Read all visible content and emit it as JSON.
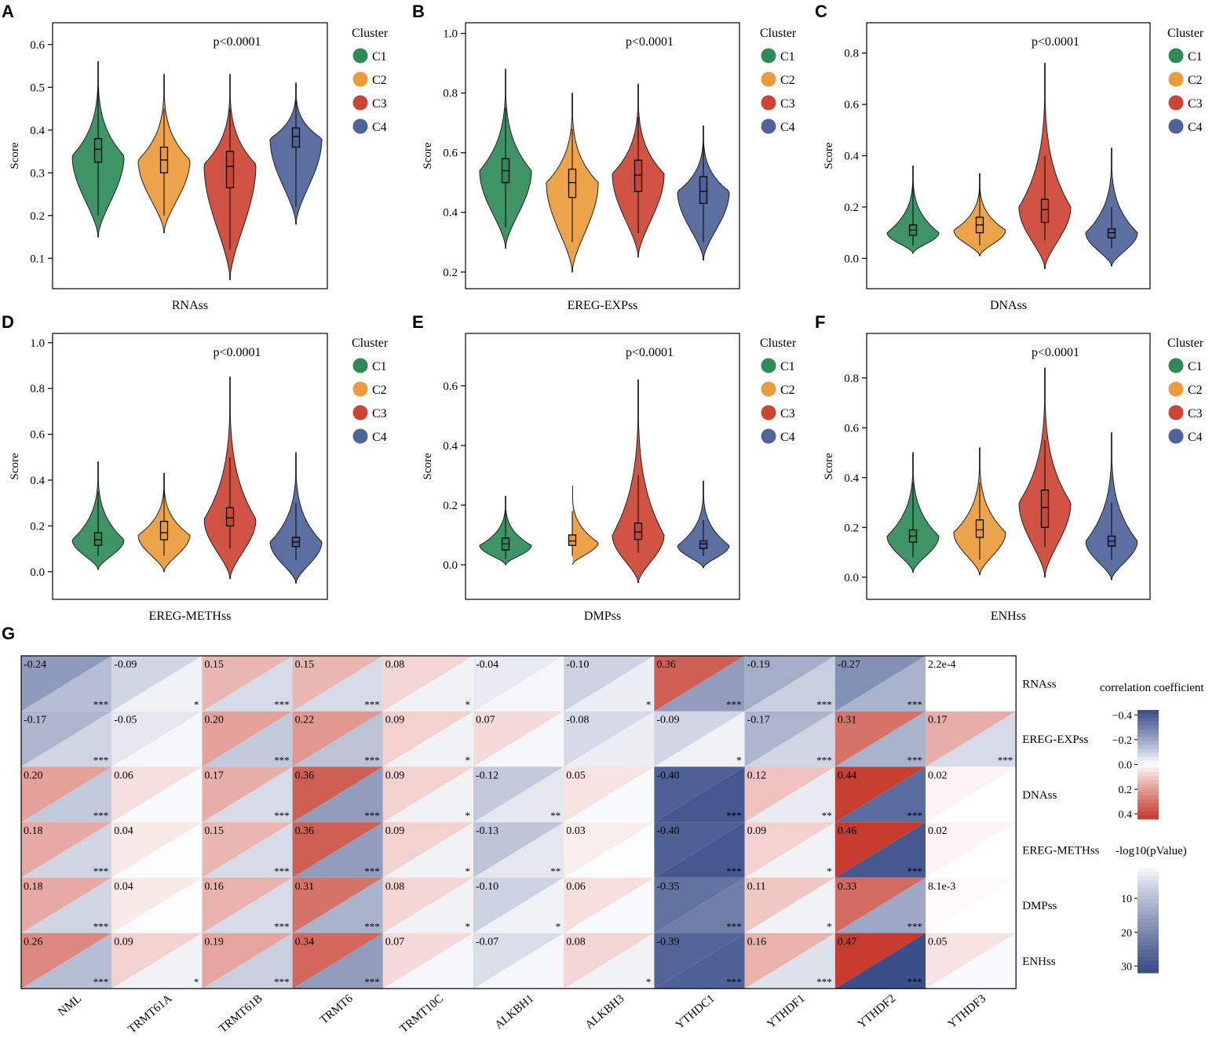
{
  "chart_data": {
    "type": "figure",
    "panels": [
      {
        "letter": "A",
        "type": "violin",
        "xlabel": "RNAss",
        "ylabel": "Score",
        "pvalue": "p<0.0001",
        "ylim": [
          0.04,
          0.64
        ],
        "yticks": [
          0.1,
          0.2,
          0.3,
          0.4,
          0.5,
          0.6
        ],
        "ytick_labels": [
          "0.1",
          "0.2",
          "0.3",
          "0.4",
          "0.5",
          "0.6"
        ],
        "legend": {
          "title": "Cluster",
          "entries": [
            "C1",
            "C2",
            "C3",
            "C4"
          ]
        },
        "violins": [
          {
            "cluster": "C1",
            "min": 0.15,
            "max": 0.56,
            "median": 0.355,
            "q1": 0.325,
            "q3": 0.38,
            "wlo": 0.2,
            "whi": 0.5,
            "peak": 0.34,
            "bulge": 0.36
          },
          {
            "cluster": "C2",
            "min": 0.16,
            "max": 0.53,
            "median": 0.33,
            "q1": 0.3,
            "q3": 0.36,
            "wlo": 0.2,
            "whi": 0.45,
            "peak": 0.33,
            "bulge": 0.34
          },
          {
            "cluster": "C3",
            "min": 0.05,
            "max": 0.53,
            "median": 0.315,
            "q1": 0.265,
            "q3": 0.35,
            "wlo": 0.12,
            "whi": 0.45,
            "peak": 0.32,
            "bulge": 0.38
          },
          {
            "cluster": "C4",
            "min": 0.18,
            "max": 0.51,
            "median": 0.385,
            "q1": 0.36,
            "q3": 0.405,
            "wlo": 0.22,
            "whi": 0.47,
            "peak": 0.38,
            "bulge": 0.32
          }
        ]
      },
      {
        "letter": "B",
        "type": "violin",
        "xlabel": "EREG-EXPss",
        "ylabel": "Score",
        "pvalue": "p<0.0001",
        "ylim": [
          0.16,
          1.02
        ],
        "yticks": [
          0.2,
          0.4,
          0.6,
          0.8,
          1.0
        ],
        "ytick_labels": [
          "0.2",
          "0.4",
          "0.6",
          "0.8",
          "1.0"
        ],
        "legend": {
          "title": "Cluster",
          "entries": [
            "C1",
            "C2",
            "C3",
            "C4"
          ]
        },
        "violins": [
          {
            "cluster": "C1",
            "min": 0.28,
            "max": 0.88,
            "median": 0.54,
            "q1": 0.5,
            "q3": 0.58,
            "wlo": 0.35,
            "whi": 0.75,
            "peak": 0.54,
            "bulge": 0.36
          },
          {
            "cluster": "C2",
            "min": 0.2,
            "max": 0.8,
            "median": 0.5,
            "q1": 0.45,
            "q3": 0.545,
            "wlo": 0.3,
            "whi": 0.68,
            "peak": 0.5,
            "bulge": 0.36
          },
          {
            "cluster": "C3",
            "min": 0.25,
            "max": 0.83,
            "median": 0.525,
            "q1": 0.47,
            "q3": 0.575,
            "wlo": 0.33,
            "whi": 0.72,
            "peak": 0.53,
            "bulge": 0.36
          },
          {
            "cluster": "C4",
            "min": 0.24,
            "max": 0.69,
            "median": 0.47,
            "q1": 0.43,
            "q3": 0.52,
            "wlo": 0.3,
            "whi": 0.63,
            "peak": 0.47,
            "bulge": 0.34
          }
        ]
      },
      {
        "letter": "C",
        "type": "violin",
        "xlabel": "DNAss",
        "ylabel": "Score",
        "pvalue": "p<0.0001",
        "ylim": [
          -0.1,
          0.9
        ],
        "yticks": [
          0.0,
          0.2,
          0.4,
          0.6,
          0.8
        ],
        "ytick_labels": [
          "0.0",
          "0.2",
          "0.4",
          "0.6",
          "0.8"
        ],
        "legend": {
          "title": "Cluster",
          "entries": [
            "C1",
            "C2",
            "C3",
            "C4"
          ]
        },
        "violins": [
          {
            "cluster": "C1",
            "min": 0.02,
            "max": 0.36,
            "median": 0.11,
            "q1": 0.09,
            "q3": 0.13,
            "wlo": 0.05,
            "whi": 0.3,
            "peak": 0.1,
            "bulge": 0.34
          },
          {
            "cluster": "C2",
            "min": 0.01,
            "max": 0.33,
            "median": 0.13,
            "q1": 0.1,
            "q3": 0.16,
            "wlo": 0.05,
            "whi": 0.28,
            "peak": 0.11,
            "bulge": 0.36
          },
          {
            "cluster": "C3",
            "min": -0.04,
            "max": 0.76,
            "median": 0.19,
            "q1": 0.14,
            "q3": 0.23,
            "wlo": 0.07,
            "whi": 0.4,
            "peak": 0.2,
            "bulge": 0.36
          },
          {
            "cluster": "C4",
            "min": -0.03,
            "max": 0.43,
            "median": 0.1,
            "q1": 0.08,
            "q3": 0.115,
            "wlo": 0.04,
            "whi": 0.2,
            "peak": 0.1,
            "bulge": 0.34
          }
        ]
      },
      {
        "letter": "D",
        "type": "violin",
        "xlabel": "EREG-METHss",
        "ylabel": "Score",
        "pvalue": "p<0.0001",
        "ylim": [
          -0.1,
          1.02
        ],
        "yticks": [
          0.0,
          0.2,
          0.4,
          0.6,
          0.8,
          1.0
        ],
        "ytick_labels": [
          "0.0",
          "0.2",
          "0.4",
          "0.6",
          "0.8",
          "1.0"
        ],
        "legend": {
          "title": "Cluster",
          "entries": [
            "C1",
            "C2",
            "C3",
            "C4"
          ]
        },
        "violins": [
          {
            "cluster": "C1",
            "min": 0.01,
            "max": 0.48,
            "median": 0.14,
            "q1": 0.115,
            "q3": 0.17,
            "wlo": 0.07,
            "whi": 0.35,
            "peak": 0.14,
            "bulge": 0.34
          },
          {
            "cluster": "C2",
            "min": 0.0,
            "max": 0.43,
            "median": 0.17,
            "q1": 0.14,
            "q3": 0.22,
            "wlo": 0.07,
            "whi": 0.35,
            "peak": 0.16,
            "bulge": 0.36
          },
          {
            "cluster": "C3",
            "min": -0.03,
            "max": 0.85,
            "median": 0.235,
            "q1": 0.2,
            "q3": 0.28,
            "wlo": 0.1,
            "whi": 0.5,
            "peak": 0.23,
            "bulge": 0.36
          },
          {
            "cluster": "C4",
            "min": -0.05,
            "max": 0.52,
            "median": 0.13,
            "q1": 0.11,
            "q3": 0.15,
            "wlo": 0.05,
            "whi": 0.3,
            "peak": 0.13,
            "bulge": 0.36
          }
        ]
      },
      {
        "letter": "E",
        "type": "violin",
        "xlabel": "DMPss",
        "ylabel": "Score",
        "pvalue": "p<0.0001",
        "ylim": [
          -0.1,
          0.76
        ],
        "yticks": [
          0.0,
          0.2,
          0.4,
          0.6
        ],
        "ytick_labels": [
          "0.0",
          "0.2",
          "0.4",
          "0.6"
        ],
        "legend": {
          "title": "Cluster",
          "entries": [
            "C1",
            "C2",
            "C3",
            "C4"
          ]
        },
        "violins": [
          {
            "cluster": "C1",
            "min": 0.0,
            "max": 0.23,
            "median": 0.07,
            "q1": 0.05,
            "q3": 0.09,
            "wlo": 0.02,
            "whi": 0.18,
            "peak": 0.065,
            "bulge": 0.34
          },
          {
            "cluster": "C2",
            "min": 0.0,
            "max": 0.27,
            "median": 0.08,
            "q1": 0.065,
            "q3": 0.1,
            "wlo": 0.03,
            "whi": 0.18,
            "peak": 0.075,
            "bulge": 0.36
          },
          {
            "cluster": "C3",
            "min": -0.06,
            "max": 0.62,
            "median": 0.11,
            "q1": 0.085,
            "q3": 0.14,
            "wlo": 0.04,
            "whi": 0.3,
            "peak": 0.1,
            "bulge": 0.36
          },
          {
            "cluster": "C4",
            "min": -0.01,
            "max": 0.28,
            "median": 0.07,
            "q1": 0.055,
            "q3": 0.08,
            "wlo": 0.03,
            "whi": 0.15,
            "peak": 0.065,
            "bulge": 0.34
          }
        ]
      },
      {
        "letter": "F",
        "type": "violin",
        "xlabel": "ENHss",
        "ylabel": "Score",
        "pvalue": "p<0.0001",
        "ylim": [
          -0.07,
          0.96
        ],
        "yticks": [
          0.0,
          0.2,
          0.4,
          0.6,
          0.8
        ],
        "ytick_labels": [
          "0.0",
          "0.2",
          "0.4",
          "0.6",
          "0.8"
        ],
        "legend": {
          "title": "Cluster",
          "entries": [
            "C1",
            "C2",
            "C3",
            "C4"
          ]
        },
        "violins": [
          {
            "cluster": "C1",
            "min": 0.02,
            "max": 0.5,
            "median": 0.165,
            "q1": 0.14,
            "q3": 0.19,
            "wlo": 0.08,
            "whi": 0.38,
            "peak": 0.165,
            "bulge": 0.34
          },
          {
            "cluster": "C2",
            "min": 0.01,
            "max": 0.52,
            "median": 0.19,
            "q1": 0.16,
            "q3": 0.23,
            "wlo": 0.07,
            "whi": 0.38,
            "peak": 0.18,
            "bulge": 0.36
          },
          {
            "cluster": "C3",
            "min": 0.0,
            "max": 0.84,
            "median": 0.28,
            "q1": 0.2,
            "q3": 0.35,
            "wlo": 0.12,
            "whi": 0.55,
            "peak": 0.3,
            "bulge": 0.38
          },
          {
            "cluster": "C4",
            "min": -0.01,
            "max": 0.58,
            "median": 0.145,
            "q1": 0.125,
            "q3": 0.165,
            "wlo": 0.07,
            "whi": 0.3,
            "peak": 0.145,
            "bulge": 0.36
          }
        ]
      }
    ],
    "clusters": [
      {
        "name": "C1",
        "color": "#2e8b57"
      },
      {
        "name": "C2",
        "color": "#eb9b3b"
      },
      {
        "name": "C3",
        "color": "#cc4434"
      },
      {
        "name": "C4",
        "color": "#4d6399"
      }
    ],
    "heatmap": {
      "letter": "G",
      "type": "heatmap",
      "rows": [
        "RNAss",
        "EREG-EXPss",
        "DNAss",
        "EREG-METHss",
        "DMPss",
        "ENHss"
      ],
      "columns": [
        "NML",
        "TRMT61A",
        "TRMT61B",
        "TRMT6",
        "TRMT10C",
        "ALKBH1",
        "ALKBH3",
        "YTHDC1",
        "YTHDF1",
        "YTHDF2",
        "YTHDF3"
      ],
      "labels": [
        [
          "-0.24",
          "-0.09",
          "0.15",
          "0.15",
          "0.08",
          "-0.04",
          "-0.10",
          "0.36",
          "-0.19",
          "-0.27",
          "2.2e-4"
        ],
        [
          "-0.17",
          "-0.05",
          "0.20",
          "0.22",
          "0.09",
          "0.07",
          "-0.08",
          "-0.09",
          "-0.17",
          "0.31",
          "0.17"
        ],
        [
          "0.20",
          "0.06",
          "0.17",
          "0.36",
          "0.09",
          "-0.12",
          "0.05",
          "-0.40",
          "0.12",
          "0.44",
          "0.02"
        ],
        [
          "0.18",
          "0.04",
          "0.15",
          "0.36",
          "0.09",
          "-0.13",
          "0.03",
          "-0.40",
          "0.09",
          "0.46",
          "0.02"
        ],
        [
          "0.18",
          "0.04",
          "0.16",
          "0.31",
          "0.08",
          "-0.10",
          "0.06",
          "-0.35",
          "0.11",
          "0.33",
          "8.1e-3"
        ],
        [
          "0.26",
          "0.09",
          "0.19",
          "0.34",
          "0.07",
          "-0.07",
          "0.08",
          "-0.39",
          "0.16",
          "0.47",
          "0.05"
        ]
      ],
      "correlation": [
        [
          -0.24,
          -0.09,
          0.15,
          0.15,
          0.08,
          -0.04,
          -0.1,
          0.36,
          -0.19,
          -0.27,
          0.00022
        ],
        [
          -0.17,
          -0.05,
          0.2,
          0.22,
          0.09,
          0.07,
          -0.08,
          -0.09,
          -0.17,
          0.31,
          0.17
        ],
        [
          0.2,
          0.06,
          0.17,
          0.36,
          0.09,
          -0.12,
          0.05,
          -0.4,
          0.12,
          0.44,
          0.02
        ],
        [
          0.18,
          0.04,
          0.15,
          0.36,
          0.09,
          -0.13,
          0.03,
          -0.4,
          0.09,
          0.46,
          0.02
        ],
        [
          0.18,
          0.04,
          0.16,
          0.31,
          0.08,
          -0.1,
          0.06,
          -0.35,
          0.11,
          0.33,
          0.0081
        ],
        [
          0.26,
          0.09,
          0.19,
          0.34,
          0.07,
          -0.07,
          0.08,
          -0.39,
          0.16,
          0.47,
          0.05
        ]
      ],
      "neglog10p": [
        [
          10,
          1.5,
          5,
          5,
          1.5,
          1,
          2,
          16,
          7,
          12,
          0
        ],
        [
          6,
          1,
          8,
          9,
          1.5,
          1,
          2,
          1.5,
          6,
          12,
          5
        ],
        [
          8,
          0.5,
          5,
          16,
          1.5,
          3,
          0.5,
          30,
          2.5,
          26,
          0
        ],
        [
          6,
          0.3,
          5,
          16,
          1.5,
          3,
          0.3,
          30,
          1.5,
          30,
          0
        ],
        [
          6,
          0.3,
          5,
          12,
          1.5,
          1.5,
          0.5,
          22,
          1.5,
          14,
          0
        ],
        [
          10,
          1.5,
          7,
          16,
          1,
          1,
          1.5,
          28,
          4,
          32,
          0.5
        ]
      ],
      "stars": [
        [
          "***",
          "*",
          "***",
          "***",
          "*",
          "",
          "*",
          "***",
          "***",
          "***",
          ""
        ],
        [
          "***",
          "",
          "***",
          "***",
          "*",
          "",
          "",
          "*",
          "***",
          "***",
          "***"
        ],
        [
          "***",
          "",
          "***",
          "***",
          "*",
          "**",
          "",
          "***",
          "**",
          "***",
          ""
        ],
        [
          "***",
          "",
          "***",
          "***",
          "*",
          "**",
          "",
          "***",
          "*",
          "***",
          ""
        ],
        [
          "***",
          "",
          "***",
          "***",
          "*",
          "*",
          "",
          "***",
          "*",
          "***",
          ""
        ],
        [
          "***",
          "*",
          "***",
          "***",
          "",
          "",
          "*",
          "***",
          "***",
          "***",
          ""
        ]
      ],
      "legend": {
        "corr_title": "correlation coefficient",
        "corr_ticks": [
          "−0.4",
          "−0.2",
          "0.0",
          "0.2",
          "0.4"
        ],
        "corr_values": [
          -0.4,
          -0.2,
          0.0,
          0.2,
          0.4
        ],
        "p_title": "-log10(pValue)",
        "p_ticks": [
          "10",
          "20",
          "30"
        ],
        "p_values": [
          10,
          20,
          30
        ],
        "p_range": [
          0,
          32
        ]
      }
    },
    "colors": {
      "negative": "#3a4f8a",
      "positive": "#c63b2d",
      "neutral": "#ffffff",
      "axis": "#000000"
    }
  }
}
